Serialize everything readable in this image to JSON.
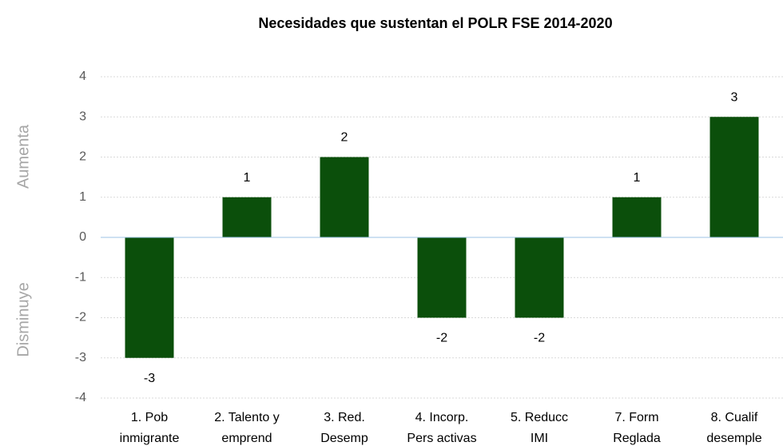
{
  "chart_data": {
    "type": "bar",
    "title": "Necesidades que sustentan el POLR FSE 2014-2020",
    "annotations": [
      "Aumenta",
      "Disminuye"
    ],
    "categories": [
      [
        "1. Pob",
        "inmigrante"
      ],
      [
        "2. Talento y",
        "emprend"
      ],
      [
        "3. Red.",
        "Desemp"
      ],
      [
        "4. Incorp.",
        "Pers activas"
      ],
      [
        "5. Reducc",
        "IMI"
      ],
      [
        "7. Form",
        "Reglada"
      ],
      [
        "8. Cualif",
        "desemple"
      ]
    ],
    "values": [
      -3,
      1,
      2,
      -2,
      -2,
      1,
      3
    ],
    "color": "#0b4f0b",
    "ylim": [
      -4,
      4
    ],
    "yticks": [
      -4,
      -3,
      -2,
      -1,
      0,
      1,
      2,
      3,
      4
    ],
    "grid": true
  }
}
